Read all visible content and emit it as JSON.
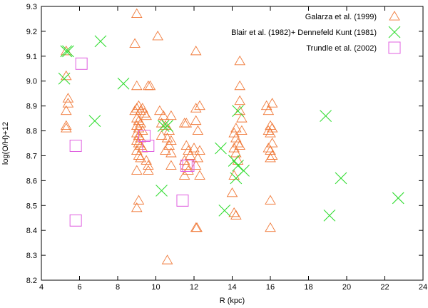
{
  "chart_data": {
    "type": "scatter",
    "title": "",
    "xlabel": "R (kpc)",
    "ylabel": "log(O/H)+12",
    "xlim": [
      4,
      24
    ],
    "ylim": [
      8.2,
      9.3
    ],
    "xticks": [
      4,
      6,
      8,
      10,
      12,
      14,
      16,
      18,
      20,
      22,
      24
    ],
    "yticks": [
      8.2,
      8.3,
      8.4,
      8.5,
      8.6,
      8.7,
      8.8,
      8.9,
      9.0,
      9.1,
      9.2,
      9.3
    ],
    "legend_position": "top-right",
    "colors": {
      "galarza": "#f07a3a",
      "blair": "#33dd33",
      "trundle": "#e060e0",
      "axes": "#000000"
    },
    "series": [
      {
        "name": "Galarza et al. (1999)",
        "marker": "triangle",
        "points": [
          [
            5.3,
            9.12
          ],
          [
            5.3,
            9.02
          ],
          [
            5.4,
            8.93
          ],
          [
            5.4,
            8.91
          ],
          [
            5.3,
            8.88
          ],
          [
            5.3,
            8.82
          ],
          [
            5.3,
            8.81
          ],
          [
            9.0,
            9.27
          ],
          [
            8.9,
            9.15
          ],
          [
            10.1,
            9.18
          ],
          [
            12.1,
            9.12
          ],
          [
            14.4,
            9.08
          ],
          [
            9.0,
            8.98
          ],
          [
            9.6,
            8.98
          ],
          [
            9.7,
            8.98
          ],
          [
            14.4,
            8.98
          ],
          [
            8.9,
            8.88
          ],
          [
            9.0,
            8.89
          ],
          [
            9.1,
            8.9
          ],
          [
            9.2,
            8.88
          ],
          [
            9.3,
            8.89
          ],
          [
            9.4,
            8.87
          ],
          [
            9.5,
            8.86
          ],
          [
            9.0,
            8.85
          ],
          [
            9.1,
            8.84
          ],
          [
            9.2,
            8.83
          ],
          [
            9.0,
            8.82
          ],
          [
            9.1,
            8.81
          ],
          [
            9.3,
            8.8
          ],
          [
            9.0,
            8.79
          ],
          [
            9.1,
            8.78
          ],
          [
            9.2,
            8.77
          ],
          [
            9.0,
            8.76
          ],
          [
            9.1,
            8.75
          ],
          [
            9.2,
            8.74
          ],
          [
            9.3,
            8.73
          ],
          [
            9.0,
            8.72
          ],
          [
            9.1,
            8.7
          ],
          [
            9.2,
            8.69
          ],
          [
            9.5,
            8.68
          ],
          [
            9.6,
            8.66
          ],
          [
            9.0,
            8.64
          ],
          [
            9.6,
            8.64
          ],
          [
            9.1,
            8.52
          ],
          [
            9.0,
            8.49
          ],
          [
            10.6,
            8.28
          ],
          [
            10.2,
            8.88
          ],
          [
            10.4,
            8.86
          ],
          [
            10.8,
            8.86
          ],
          [
            10.3,
            8.83
          ],
          [
            10.5,
            8.82
          ],
          [
            10.7,
            8.8
          ],
          [
            10.3,
            8.78
          ],
          [
            10.6,
            8.77
          ],
          [
            10.8,
            8.76
          ],
          [
            10.7,
            8.74
          ],
          [
            10.5,
            8.72
          ],
          [
            10.8,
            8.71
          ],
          [
            10.8,
            8.66
          ],
          [
            11.5,
            8.83
          ],
          [
            11.6,
            8.83
          ],
          [
            11.6,
            8.74
          ],
          [
            11.7,
            8.72
          ],
          [
            11.8,
            8.7
          ],
          [
            11.5,
            8.68
          ],
          [
            11.6,
            8.66
          ],
          [
            11.7,
            8.64
          ],
          [
            11.5,
            8.62
          ],
          [
            12.1,
            8.89
          ],
          [
            12.3,
            8.9
          ],
          [
            12.1,
            8.84
          ],
          [
            12.2,
            8.8
          ],
          [
            12.0,
            8.73
          ],
          [
            12.3,
            8.72
          ],
          [
            12.2,
            8.69
          ],
          [
            12.1,
            8.66
          ],
          [
            12.3,
            8.62
          ],
          [
            12.1,
            8.41
          ],
          [
            12.15,
            8.41
          ],
          [
            14.2,
            8.81
          ],
          [
            14.1,
            8.79
          ],
          [
            14.2,
            8.77
          ],
          [
            14.3,
            8.75
          ],
          [
            14.1,
            8.73
          ],
          [
            14.2,
            8.71
          ],
          [
            14.3,
            8.68
          ],
          [
            14.1,
            8.62
          ],
          [
            14.0,
            8.55
          ],
          [
            14.1,
            8.47
          ],
          [
            14.2,
            8.46
          ],
          [
            14.4,
            8.92
          ],
          [
            14.4,
            8.88
          ],
          [
            14.5,
            8.85
          ],
          [
            14.5,
            8.8
          ],
          [
            14.4,
            8.74
          ],
          [
            15.8,
            8.9
          ],
          [
            15.9,
            8.88
          ],
          [
            16.1,
            8.91
          ],
          [
            16.0,
            8.82
          ],
          [
            16.1,
            8.81
          ],
          [
            15.9,
            8.8
          ],
          [
            16.0,
            8.79
          ],
          [
            16.1,
            8.75
          ],
          [
            15.9,
            8.73
          ],
          [
            16.0,
            8.72
          ],
          [
            16.1,
            8.7
          ],
          [
            16.0,
            8.69
          ],
          [
            16.0,
            8.52
          ],
          [
            16.0,
            8.41
          ]
        ]
      },
      {
        "name": "Blair et al. (1982)+ Dennefeld  Kunt (1981)",
        "marker": "cross",
        "points": [
          [
            5.2,
            9.01
          ],
          [
            5.3,
            9.12
          ],
          [
            5.4,
            9.12
          ],
          [
            7.1,
            9.16
          ],
          [
            6.8,
            8.84
          ],
          [
            8.3,
            8.99
          ],
          [
            10.4,
            8.82
          ],
          [
            10.6,
            8.82
          ],
          [
            10.3,
            8.56
          ],
          [
            13.4,
            8.73
          ],
          [
            13.6,
            8.48
          ],
          [
            14.1,
            8.68
          ],
          [
            14.3,
            8.66
          ],
          [
            14.6,
            8.64
          ],
          [
            14.2,
            8.61
          ],
          [
            14.3,
            8.88
          ],
          [
            18.9,
            8.86
          ],
          [
            19.7,
            8.61
          ],
          [
            19.1,
            8.46
          ],
          [
            22.7,
            8.53
          ]
        ]
      },
      {
        "name": "Trundle et al. (2002)",
        "marker": "square",
        "points": [
          [
            6.1,
            9.07
          ],
          [
            5.8,
            8.74
          ],
          [
            5.8,
            8.44
          ],
          [
            9.4,
            8.78
          ],
          [
            9.6,
            8.74
          ],
          [
            11.4,
            8.52
          ],
          [
            11.6,
            8.66
          ],
          [
            11.7,
            8.66
          ]
        ]
      }
    ]
  }
}
